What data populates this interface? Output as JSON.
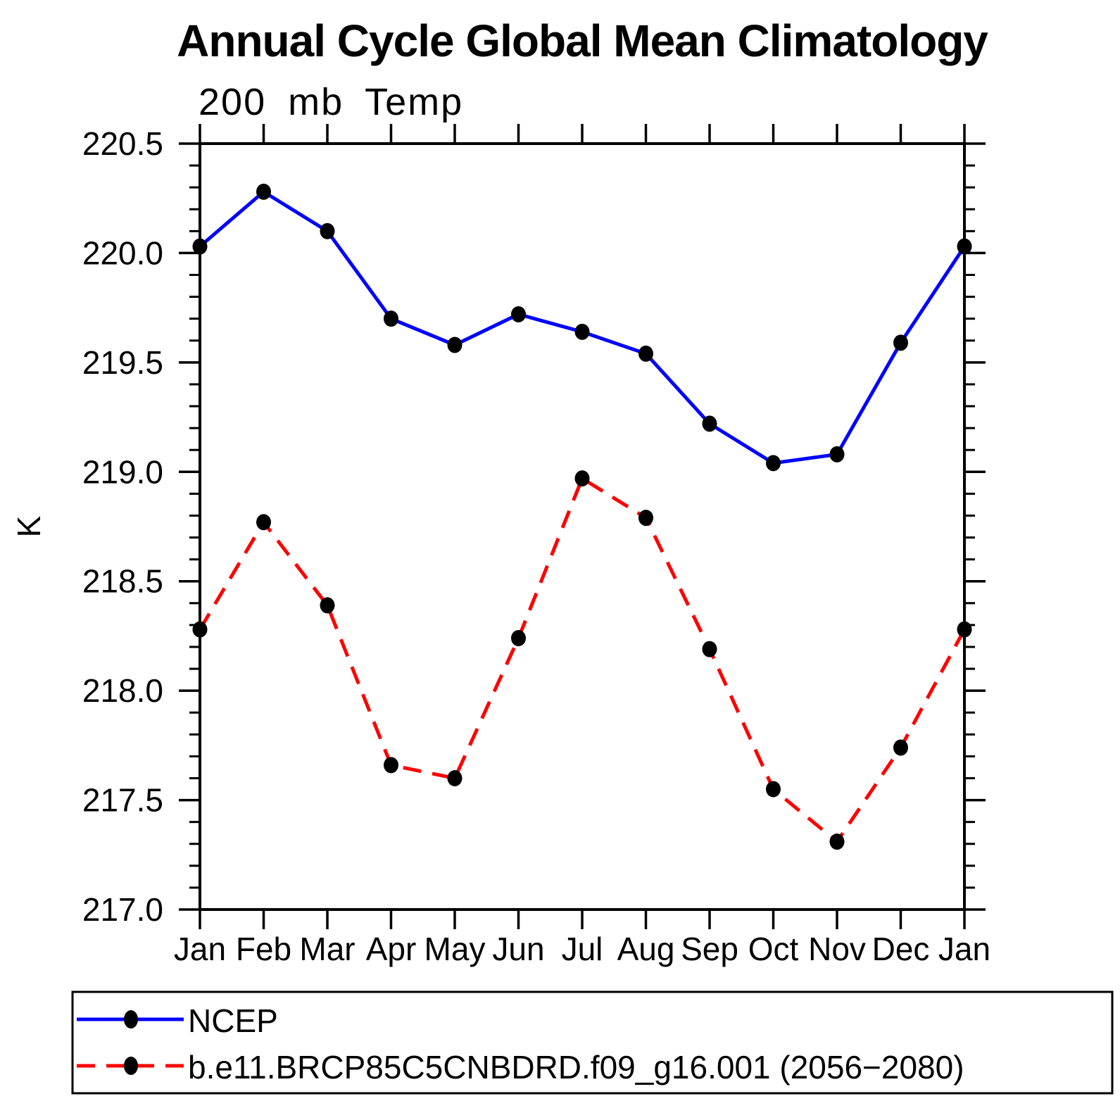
{
  "title": "Annual Cycle Global Mean Climatology",
  "subtitle": "200 mb Temp",
  "ylabel": "K",
  "colors": {
    "ncep_line": "#0000ff",
    "model_line": "#ff0000",
    "marker": "#000000",
    "axis": "#000000",
    "background": "#ffffff"
  },
  "legend": [
    {
      "label": "NCEP",
      "color": "#0000ff",
      "style": "solid"
    },
    {
      "label": "b.e11.BRCP85C5CNBDRD.f09_g16.001 (2056−2080)",
      "color": "#ff0000",
      "style": "dashed"
    }
  ],
  "chart_data": {
    "type": "line",
    "title": "Annual Cycle Global Mean Climatology",
    "subtitle": "200 mb Temp",
    "xlabel": "",
    "ylabel": "K",
    "categories": [
      "Jan",
      "Feb",
      "Mar",
      "Apr",
      "May",
      "Jun",
      "Jul",
      "Aug",
      "Sep",
      "Oct",
      "Nov",
      "Dec",
      "Jan"
    ],
    "series": [
      {
        "name": "NCEP",
        "color": "#0000ff",
        "style": "solid",
        "marker": "filled-circle",
        "values": [
          220.03,
          220.28,
          220.1,
          219.7,
          219.58,
          219.72,
          219.64,
          219.54,
          219.22,
          219.04,
          219.08,
          219.59,
          220.03
        ]
      },
      {
        "name": "b.e11.BRCP85C5CNBDRD.f09_g16.001 (2056−2080)",
        "color": "#ff0000",
        "style": "dashed",
        "marker": "filled-circle",
        "values": [
          218.28,
          218.77,
          218.39,
          217.66,
          217.6,
          218.24,
          218.97,
          218.79,
          218.19,
          217.55,
          217.31,
          217.74,
          218.28
        ]
      }
    ],
    "ylim": [
      217.0,
      220.5
    ],
    "ytick_major": 0.5,
    "ytick_minor": 0.1,
    "ytick_format_decimals": 1,
    "grid": false,
    "legend_position": "bottom"
  }
}
